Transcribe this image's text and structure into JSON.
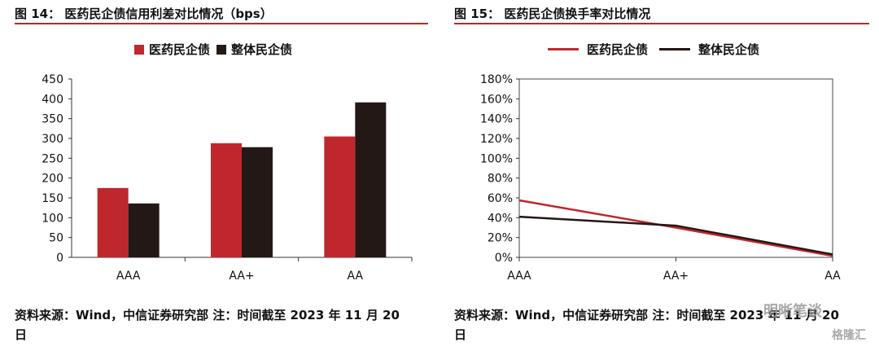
{
  "left": {
    "title": "图 14：  医药民企债信用利差对比情况（bps）",
    "source_line1": "资料来源：Wind，中信证券研究部  注：时间截至 2023 年 11 月 20",
    "source_line2": "日"
  },
  "right": {
    "title": "图 15：  医药民企债换手率对比情况",
    "source_line1": "资料来源：Wind，中信证券研究部  注：时间截至 2023 年 11 月 20",
    "source_line2": "日"
  },
  "watermark": {
    "text1": "明晰笔谈",
    "text2": "格隆汇"
  },
  "colors": {
    "red": "#c0272d",
    "black": "#231815",
    "rule": "#b22b2b"
  },
  "chart_data": [
    {
      "type": "bar",
      "title": "图 14：  医药民企债信用利差对比情况（bps）",
      "categories": [
        "AAA",
        "AA+",
        "AA"
      ],
      "series": [
        {
          "name": "医药民企债",
          "values": [
            175,
            288,
            305
          ]
        },
        {
          "name": "整体民企债",
          "values": [
            136,
            278,
            391
          ]
        }
      ],
      "ylim": [
        0,
        450
      ],
      "yticks": [
        "0",
        "50",
        "100",
        "150",
        "200",
        "250",
        "300",
        "350",
        "400",
        "450"
      ],
      "legend": "top",
      "grid": false
    },
    {
      "type": "line",
      "title": "图 15：  医药民企债换手率对比情况",
      "categories": [
        "AAA",
        "AA+",
        "AA"
      ],
      "series": [
        {
          "name": "医药民企债",
          "values": [
            0.575,
            0.3,
            0.015
          ]
        },
        {
          "name": "整体民企债",
          "values": [
            0.41,
            0.32,
            0.03
          ]
        }
      ],
      "ylim": [
        0,
        1.8
      ],
      "yticks": [
        "0%",
        "20%",
        "40%",
        "60%",
        "80%",
        "100%",
        "120%",
        "140%",
        "160%",
        "180%"
      ],
      "legend": "top",
      "grid": false
    }
  ]
}
